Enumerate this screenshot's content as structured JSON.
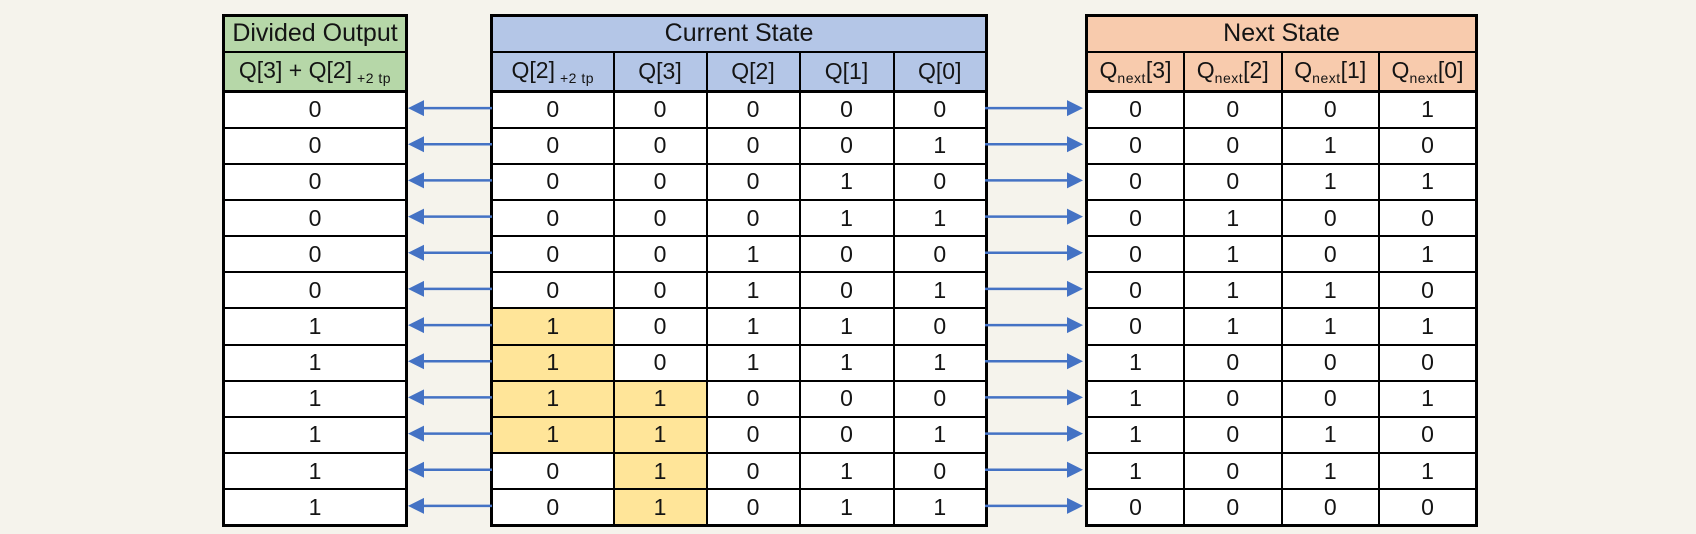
{
  "colors": {
    "background": "#f5f3ec",
    "green_header": "#b6d7a8",
    "blue_header": "#b4c6e7",
    "orange_header": "#f8cbad",
    "yellow_highlight": "#ffe599",
    "arrow_blue": "#4472c4",
    "table_border": "#000000"
  },
  "divided_output": {
    "title": "Divided Output",
    "columns": [
      {
        "pre": "Q[3] + Q[2]",
        "sub": "+2 tp",
        "post": ""
      }
    ],
    "rows": [
      [
        "0"
      ],
      [
        "0"
      ],
      [
        "0"
      ],
      [
        "0"
      ],
      [
        "0"
      ],
      [
        "0"
      ],
      [
        "1"
      ],
      [
        "1"
      ],
      [
        "1"
      ],
      [
        "1"
      ],
      [
        "1"
      ],
      [
        "1"
      ]
    ]
  },
  "current_state": {
    "title": "Current State",
    "columns": [
      {
        "pre": "Q[2]",
        "sub": "+2 tp",
        "post": ""
      },
      {
        "pre": "Q[3]",
        "sub": "",
        "post": ""
      },
      {
        "pre": "Q[2]",
        "sub": "",
        "post": ""
      },
      {
        "pre": "Q[1]",
        "sub": "",
        "post": ""
      },
      {
        "pre": "Q[0]",
        "sub": "",
        "post": ""
      }
    ],
    "rows": [
      [
        "0",
        "0",
        "0",
        "0",
        "0"
      ],
      [
        "0",
        "0",
        "0",
        "0",
        "1"
      ],
      [
        "0",
        "0",
        "0",
        "1",
        "0"
      ],
      [
        "0",
        "0",
        "0",
        "1",
        "1"
      ],
      [
        "0",
        "0",
        "1",
        "0",
        "0"
      ],
      [
        "0",
        "0",
        "1",
        "0",
        "1"
      ],
      [
        "1",
        "0",
        "1",
        "1",
        "0"
      ],
      [
        "1",
        "0",
        "1",
        "1",
        "1"
      ],
      [
        "1",
        "1",
        "0",
        "0",
        "0"
      ],
      [
        "1",
        "1",
        "0",
        "0",
        "1"
      ],
      [
        "0",
        "1",
        "0",
        "1",
        "0"
      ],
      [
        "0",
        "1",
        "0",
        "1",
        "1"
      ]
    ],
    "highlighted_cells": [
      [
        6,
        0
      ],
      [
        7,
        0
      ],
      [
        8,
        0
      ],
      [
        8,
        1
      ],
      [
        9,
        0
      ],
      [
        9,
        1
      ],
      [
        10,
        1
      ],
      [
        11,
        1
      ]
    ]
  },
  "next_state": {
    "title": "Next State",
    "columns": [
      {
        "pre": "Q",
        "sub": "next",
        "post": "[3]"
      },
      {
        "pre": "Q",
        "sub": "next",
        "post": "[2]"
      },
      {
        "pre": "Q",
        "sub": "next",
        "post": "[1]"
      },
      {
        "pre": "Q",
        "sub": "next",
        "post": "[0]"
      }
    ],
    "rows": [
      [
        "0",
        "0",
        "0",
        "1"
      ],
      [
        "0",
        "0",
        "1",
        "0"
      ],
      [
        "0",
        "0",
        "1",
        "1"
      ],
      [
        "0",
        "1",
        "0",
        "0"
      ],
      [
        "0",
        "1",
        "0",
        "1"
      ],
      [
        "0",
        "1",
        "1",
        "0"
      ],
      [
        "0",
        "1",
        "1",
        "1"
      ],
      [
        "1",
        "0",
        "0",
        "0"
      ],
      [
        "1",
        "0",
        "0",
        "1"
      ],
      [
        "1",
        "0",
        "1",
        "0"
      ],
      [
        "1",
        "0",
        "1",
        "1"
      ],
      [
        "0",
        "0",
        "0",
        "0"
      ]
    ]
  }
}
